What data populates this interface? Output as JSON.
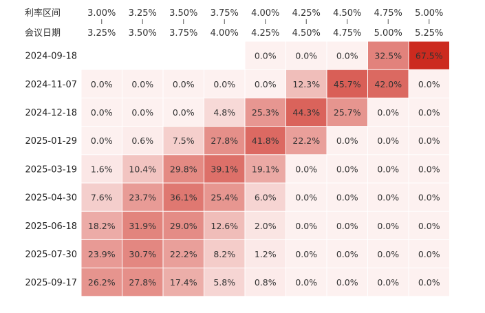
{
  "chart_data": {
    "type": "heatmap",
    "title": "",
    "corner_labels": {
      "top": "利率区间",
      "bottom": "会议日期"
    },
    "columns": [
      {
        "low": "3.00%",
        "high": "3.25%"
      },
      {
        "low": "3.25%",
        "high": "3.50%"
      },
      {
        "low": "3.50%",
        "high": "3.75%"
      },
      {
        "low": "3.75%",
        "high": "4.00%"
      },
      {
        "low": "4.00%",
        "high": "4.25%"
      },
      {
        "low": "4.25%",
        "high": "4.50%"
      },
      {
        "low": "4.50%",
        "high": "4.75%"
      },
      {
        "low": "4.75%",
        "high": "5.00%"
      },
      {
        "low": "5.00%",
        "high": "5.25%"
      }
    ],
    "rows": [
      {
        "date": "2024-09-18",
        "values": [
          null,
          null,
          null,
          null,
          0.0,
          0.0,
          0.0,
          32.5,
          67.5
        ]
      },
      {
        "date": "2024-11-07",
        "values": [
          0.0,
          0.0,
          0.0,
          0.0,
          0.0,
          12.3,
          45.7,
          42.0,
          0.0
        ]
      },
      {
        "date": "2024-12-18",
        "values": [
          0.0,
          0.0,
          0.0,
          4.8,
          25.3,
          44.3,
          25.7,
          0.0,
          0.0
        ]
      },
      {
        "date": "2025-01-29",
        "values": [
          0.0,
          0.6,
          7.5,
          27.8,
          41.8,
          22.2,
          0.0,
          0.0,
          0.0
        ]
      },
      {
        "date": "2025-03-19",
        "values": [
          1.6,
          10.4,
          29.8,
          39.1,
          19.1,
          0.0,
          0.0,
          0.0,
          0.0
        ]
      },
      {
        "date": "2025-04-30",
        "values": [
          7.6,
          23.7,
          36.1,
          25.4,
          6.0,
          0.0,
          0.0,
          0.0,
          0.0
        ]
      },
      {
        "date": "2025-06-18",
        "values": [
          18.2,
          31.9,
          29.0,
          12.6,
          2.0,
          0.0,
          0.0,
          0.0,
          0.0
        ]
      },
      {
        "date": "2025-07-30",
        "values": [
          23.9,
          30.7,
          22.2,
          8.2,
          1.2,
          0.0,
          0.0,
          0.0,
          0.0
        ]
      },
      {
        "date": "2025-09-17",
        "values": [
          26.2,
          27.8,
          17.4,
          5.8,
          0.8,
          0.0,
          0.0,
          0.0,
          0.0
        ]
      }
    ],
    "value_suffix": "%",
    "colors": {
      "low": "#fdf1f0",
      "high": "#cc2a1f",
      "text": "#333333",
      "text_on_dark": "#ffffff"
    }
  }
}
